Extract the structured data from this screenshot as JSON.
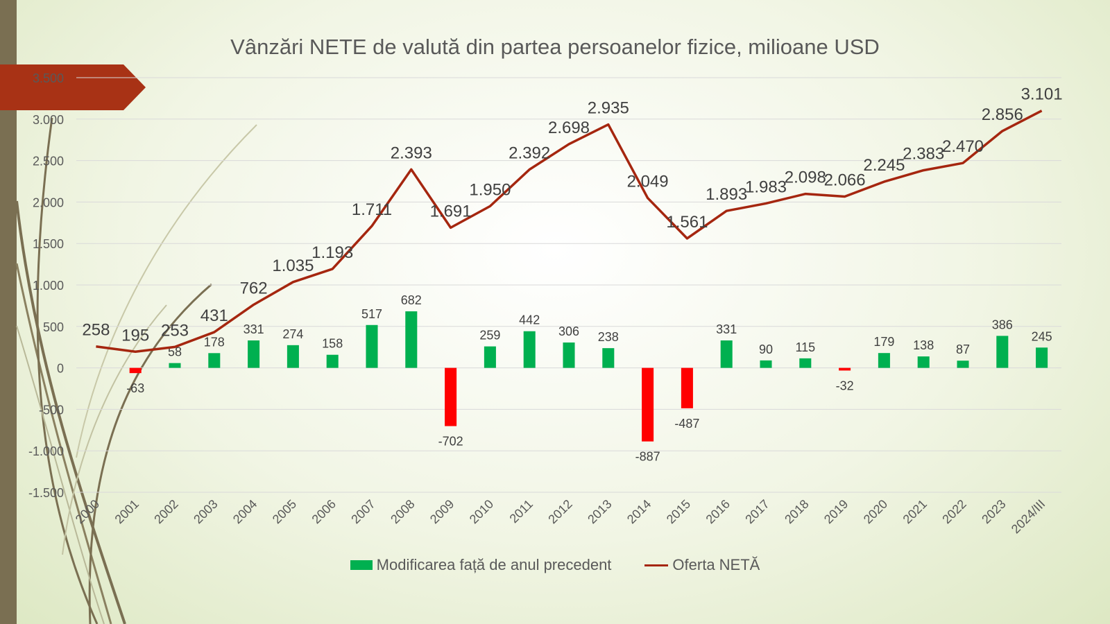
{
  "chart_data": {
    "type": "bar+line",
    "title": "Vânzări NETE de valută din partea persoanelor fizice, milioane USD",
    "categories": [
      "2000",
      "2001",
      "2002",
      "2003",
      "2004",
      "2005",
      "2006",
      "2007",
      "2008",
      "2009",
      "2010",
      "2011",
      "2012",
      "2013",
      "2014",
      "2015",
      "2016",
      "2017",
      "2018",
      "2019",
      "2020",
      "2021",
      "2022",
      "2023",
      "2024/III"
    ],
    "series": [
      {
        "name": "Modificarea față de anul precedent",
        "type": "bar",
        "values": [
          null,
          -63,
          58,
          178,
          331,
          274,
          158,
          517,
          682,
          -702,
          259,
          442,
          306,
          238,
          -887,
          -487,
          331,
          90,
          115,
          -32,
          179,
          138,
          87,
          386,
          245
        ],
        "labels": [
          "",
          "-63",
          "58",
          "178",
          "331",
          "274",
          "158",
          "517",
          "682",
          "-702",
          "259",
          "442",
          "306",
          "238",
          "-887",
          "-487",
          "331",
          "90",
          "115",
          "-32",
          "179",
          "138",
          "87",
          "386",
          "245"
        ],
        "color_positive": "#00b050",
        "color_negative": "#ff0000"
      },
      {
        "name": "Oferta NETĂ",
        "type": "line",
        "values": [
          258,
          195,
          253,
          431,
          762,
          1035,
          1193,
          1711,
          2393,
          1691,
          1950,
          2392,
          2698,
          2935,
          2049,
          1561,
          1893,
          1983,
          2098,
          2066,
          2245,
          2383,
          2470,
          2856,
          3101
        ],
        "labels": [
          "258",
          "195",
          "253",
          "431",
          "762",
          "1.035",
          "1.193",
          "1.711",
          "2.393",
          "1.691",
          "1.950",
          "2.392",
          "2.698",
          "2.935",
          "2.049",
          "1.561",
          "1.893",
          "1.983",
          "2.098",
          "2.066",
          "2.245",
          "2.383",
          "2.470",
          "2.856",
          "3.101"
        ],
        "color": "#a5260f"
      }
    ],
    "ylim": [
      -1500,
      3500
    ],
    "yticks": [
      -1500,
      -1000,
      -500,
      0,
      500,
      1000,
      1500,
      2000,
      2500,
      3000,
      3500
    ],
    "ytick_labels": [
      "-1.500",
      "-1.000",
      "-500",
      "0",
      "500",
      "1.000",
      "1.500",
      "2.000",
      "2.500",
      "3.000",
      "3.500"
    ],
    "grid": true,
    "legend_position": "bottom"
  }
}
